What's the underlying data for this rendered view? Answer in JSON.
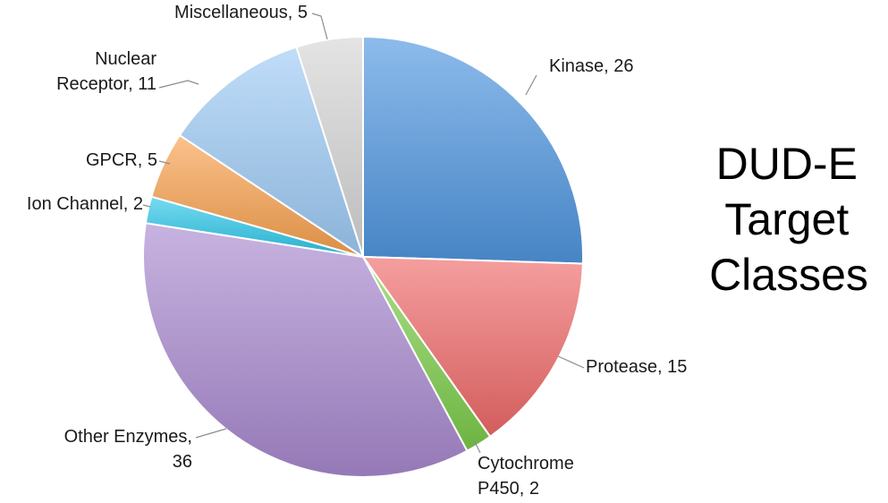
{
  "chart_data": {
    "type": "pie",
    "title_lines": [
      "DUD-E",
      "Target",
      "Classes"
    ],
    "start": "top, clockwise",
    "slices": [
      {
        "name": "Kinase",
        "value": 26,
        "label_lines": [
          "Kinase, 26"
        ],
        "color": "#4f96e0"
      },
      {
        "name": "Protease",
        "value": 15,
        "label_lines": [
          "Protease, 15"
        ],
        "color": "#f06a6a"
      },
      {
        "name": "Cytochrome P450",
        "value": 2,
        "label_lines": [
          "Cytochrome",
          "P450, 2"
        ],
        "color": "#7ccd4a"
      },
      {
        "name": "Other Enzymes",
        "value": 36,
        "label_lines": [
          "Other Enzymes,",
          "36"
        ],
        "color": "#a98ad0"
      },
      {
        "name": "Ion Channel",
        "value": 2,
        "label_lines": [
          "Ion Channel, 2"
        ],
        "color": "#2cc7ea"
      },
      {
        "name": "GPCR",
        "value": 5,
        "label_lines": [
          "GPCR, 5"
        ],
        "color": "#f9a14e"
      },
      {
        "name": "Nuclear Receptor",
        "value": 11,
        "label_lines": [
          "Nuclear",
          "Receptor, 11"
        ],
        "color": "#9ecbf6"
      },
      {
        "name": "Miscellaneous",
        "value": 5,
        "label_lines": [
          "Miscellaneous, 5"
        ],
        "color": "#d6d6d6"
      }
    ]
  }
}
